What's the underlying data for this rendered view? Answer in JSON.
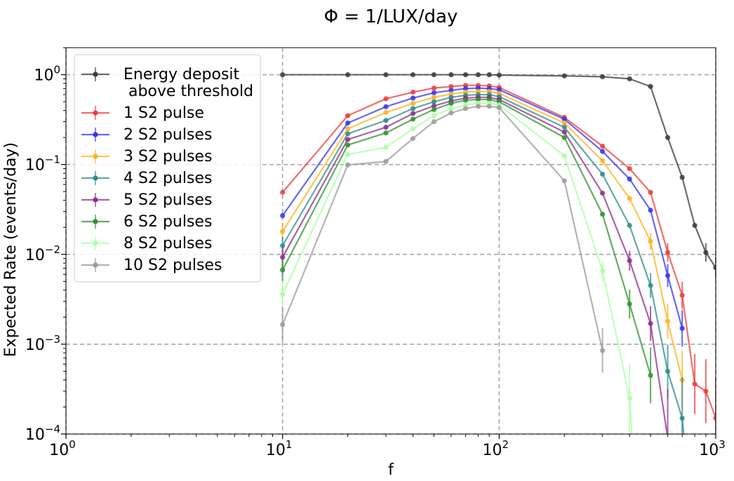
{
  "chart_data": {
    "type": "line",
    "title": "Φ = 1/LUX/day",
    "xlabel": "f",
    "ylabel": "Expected Rate (events/day)",
    "xscale": "log",
    "yscale": "log",
    "xlim": [
      1,
      1000
    ],
    "ylim": [
      0.0001,
      2
    ],
    "xticks": [
      {
        "value": 1,
        "mant": "10",
        "exp": "0"
      },
      {
        "value": 10,
        "mant": "10",
        "exp": "1"
      },
      {
        "value": 100,
        "mant": "10",
        "exp": "2"
      },
      {
        "value": 1000,
        "mant": "10",
        "exp": "3"
      }
    ],
    "yticks": [
      {
        "value": 0.0001,
        "mant": "10",
        "exp": "−4"
      },
      {
        "value": 0.001,
        "mant": "10",
        "exp": "−3"
      },
      {
        "value": 0.01,
        "mant": "10",
        "exp": "−2"
      },
      {
        "value": 0.1,
        "mant": "10",
        "exp": "−1"
      },
      {
        "value": 1,
        "mant": "10",
        "exp": "0"
      }
    ],
    "grid": true,
    "legend_position": "upper-left",
    "series": [
      {
        "name": "Energy deposit\n above threshold",
        "color": "#3a3a3a",
        "x": [
          10,
          20,
          30,
          40,
          50,
          60,
          70,
          80,
          90,
          100,
          200,
          300,
          400,
          500,
          600,
          700,
          800,
          900,
          1000
        ],
        "y": [
          1.0,
          1.0,
          1.0,
          1.0,
          1.0,
          1.0,
          1.0,
          1.0,
          1.0,
          0.99,
          0.97,
          0.95,
          0.9,
          0.74,
          0.2,
          0.072,
          0.021,
          0.0105,
          0.0071
        ]
      },
      {
        "name": "1 S2 pulse",
        "color": "#ee3b3b",
        "x": [
          10,
          20,
          30,
          40,
          50,
          60,
          70,
          80,
          90,
          100,
          200,
          300,
          400,
          500,
          600,
          700,
          800,
          900,
          1000
        ],
        "y": [
          0.049,
          0.35,
          0.54,
          0.64,
          0.71,
          0.74,
          0.76,
          0.76,
          0.75,
          0.72,
          0.335,
          0.16,
          0.09,
          0.049,
          0.0105,
          0.0035,
          0.00036,
          0.0003,
          0.00015
        ]
      },
      {
        "name": "2 S2 pulses",
        "color": "#3434ee",
        "x": [
          10,
          20,
          30,
          40,
          50,
          60,
          70,
          80,
          90,
          100,
          200,
          300,
          400,
          500,
          600,
          700
        ],
        "y": [
          0.027,
          0.29,
          0.44,
          0.55,
          0.63,
          0.67,
          0.7,
          0.71,
          0.7,
          0.68,
          0.32,
          0.14,
          0.069,
          0.031,
          0.0058,
          0.0015
        ]
      },
      {
        "name": "3 S2 pulses",
        "color": "#ffb020",
        "x": [
          10,
          20,
          30,
          40,
          50,
          60,
          70,
          80,
          90,
          100,
          200,
          300,
          400,
          500,
          600,
          700
        ],
        "y": [
          0.018,
          0.25,
          0.38,
          0.48,
          0.56,
          0.61,
          0.64,
          0.65,
          0.65,
          0.62,
          0.29,
          0.11,
          0.042,
          0.014,
          0.0018,
          0.0004
        ]
      },
      {
        "name": "4 S2 pulses",
        "color": "#2e8b8b",
        "x": [
          10,
          20,
          30,
          40,
          50,
          60,
          70,
          80,
          90,
          100,
          200,
          300,
          400,
          500,
          600,
          700
        ],
        "y": [
          0.0125,
          0.22,
          0.31,
          0.42,
          0.5,
          0.56,
          0.59,
          0.6,
          0.6,
          0.57,
          0.26,
          0.078,
          0.021,
          0.0045,
          0.0005,
          0.00015
        ]
      },
      {
        "name": "5 S2 pulses",
        "color": "#8b2e8b",
        "x": [
          10,
          20,
          30,
          40,
          50,
          60,
          70,
          80,
          90,
          100,
          200,
          300,
          400,
          500,
          600
        ],
        "y": [
          0.0093,
          0.19,
          0.26,
          0.37,
          0.45,
          0.51,
          0.55,
          0.56,
          0.56,
          0.53,
          0.23,
          0.048,
          0.0085,
          0.0017,
          9e-05
        ]
      },
      {
        "name": "6 S2 pulses",
        "color": "#2e922e",
        "x": [
          10,
          20,
          30,
          40,
          50,
          60,
          70,
          80,
          90,
          100,
          200,
          300,
          400,
          500
        ],
        "y": [
          0.0067,
          0.165,
          0.225,
          0.32,
          0.41,
          0.48,
          0.52,
          0.53,
          0.53,
          0.5,
          0.2,
          0.028,
          0.0028,
          0.00045
        ]
      },
      {
        "name": "8 S2 pulses",
        "color": "#a8ffa0",
        "x": [
          10,
          20,
          30,
          40,
          50,
          60,
          70,
          80,
          90,
          100,
          200,
          300,
          400
        ],
        "y": [
          0.0036,
          0.13,
          0.155,
          0.25,
          0.35,
          0.42,
          0.46,
          0.48,
          0.48,
          0.46,
          0.125,
          0.0066,
          0.00025
        ]
      },
      {
        "name": "10 S2 pulses",
        "color": "#9a9a9a",
        "x": [
          10,
          20,
          30,
          40,
          50,
          60,
          70,
          80,
          90,
          100,
          200,
          300
        ],
        "y": [
          0.00165,
          0.099,
          0.108,
          0.195,
          0.3,
          0.375,
          0.42,
          0.445,
          0.445,
          0.43,
          0.066,
          0.00085
        ]
      }
    ]
  }
}
